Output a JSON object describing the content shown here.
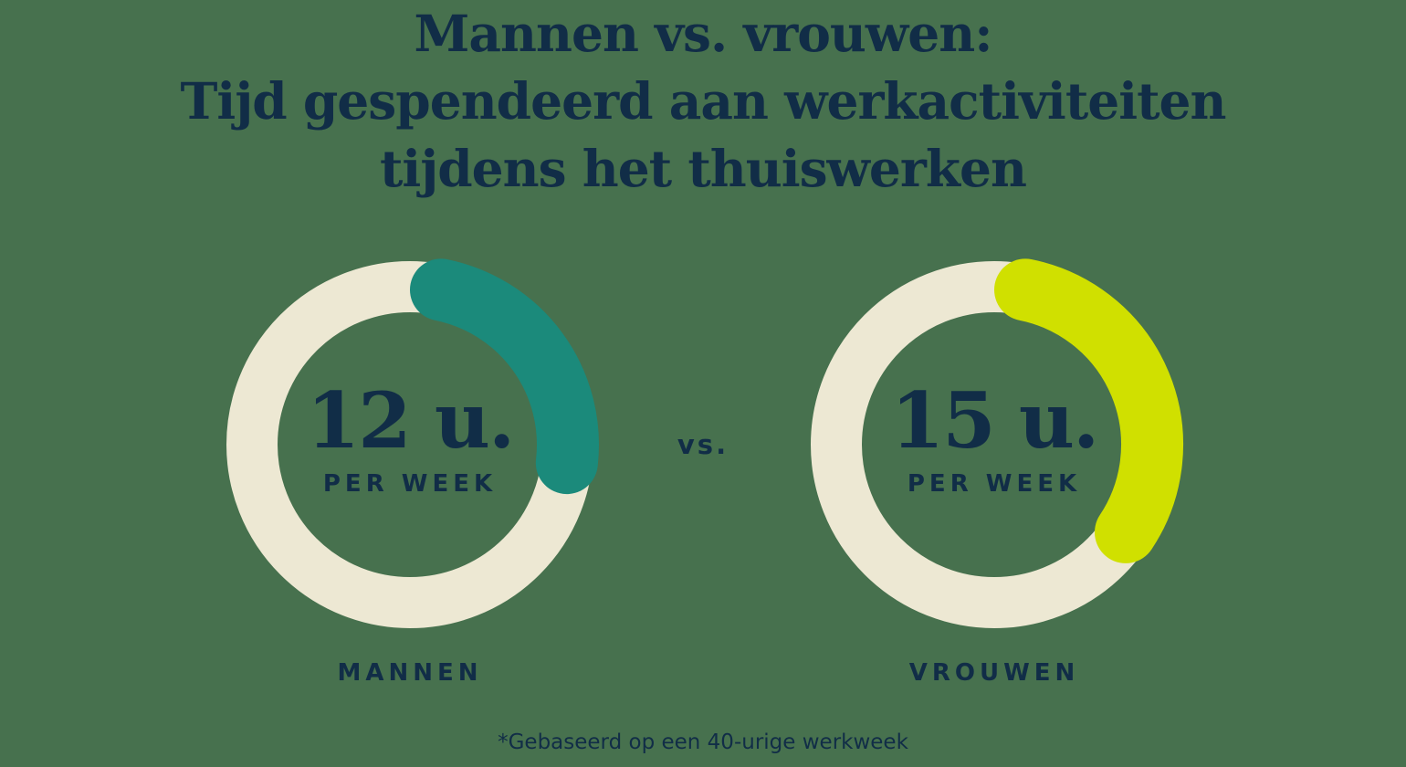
{
  "title": {
    "lines": [
      "Mannen vs. vrouwen:",
      "Tijd gespendeerd aan werkactiviteiten",
      "tijdens het thuiswerken"
    ]
  },
  "vs_label": "vs.",
  "footnote": "*Gebaseerd op een 40-urige werkweek",
  "colors": {
    "background": "#47714E",
    "ink": "#112D47",
    "track": "#EDE8D3",
    "men-arc": "#1B8A7B",
    "women-arc": "#D0E000"
  },
  "chart_data": [
    {
      "type": "donut",
      "group": "MANNEN",
      "value": 12,
      "max": 40,
      "value_label": "12 u.",
      "sub_label": "PER WEEK",
      "arc_color": "#1B8A7B",
      "track_color": "#EDE8D3"
    },
    {
      "type": "donut",
      "group": "VROUWEN",
      "value": 15,
      "max": 40,
      "value_label": "15 u.",
      "sub_label": "PER WEEK",
      "arc_color": "#D0E000",
      "track_color": "#EDE8D3"
    }
  ]
}
